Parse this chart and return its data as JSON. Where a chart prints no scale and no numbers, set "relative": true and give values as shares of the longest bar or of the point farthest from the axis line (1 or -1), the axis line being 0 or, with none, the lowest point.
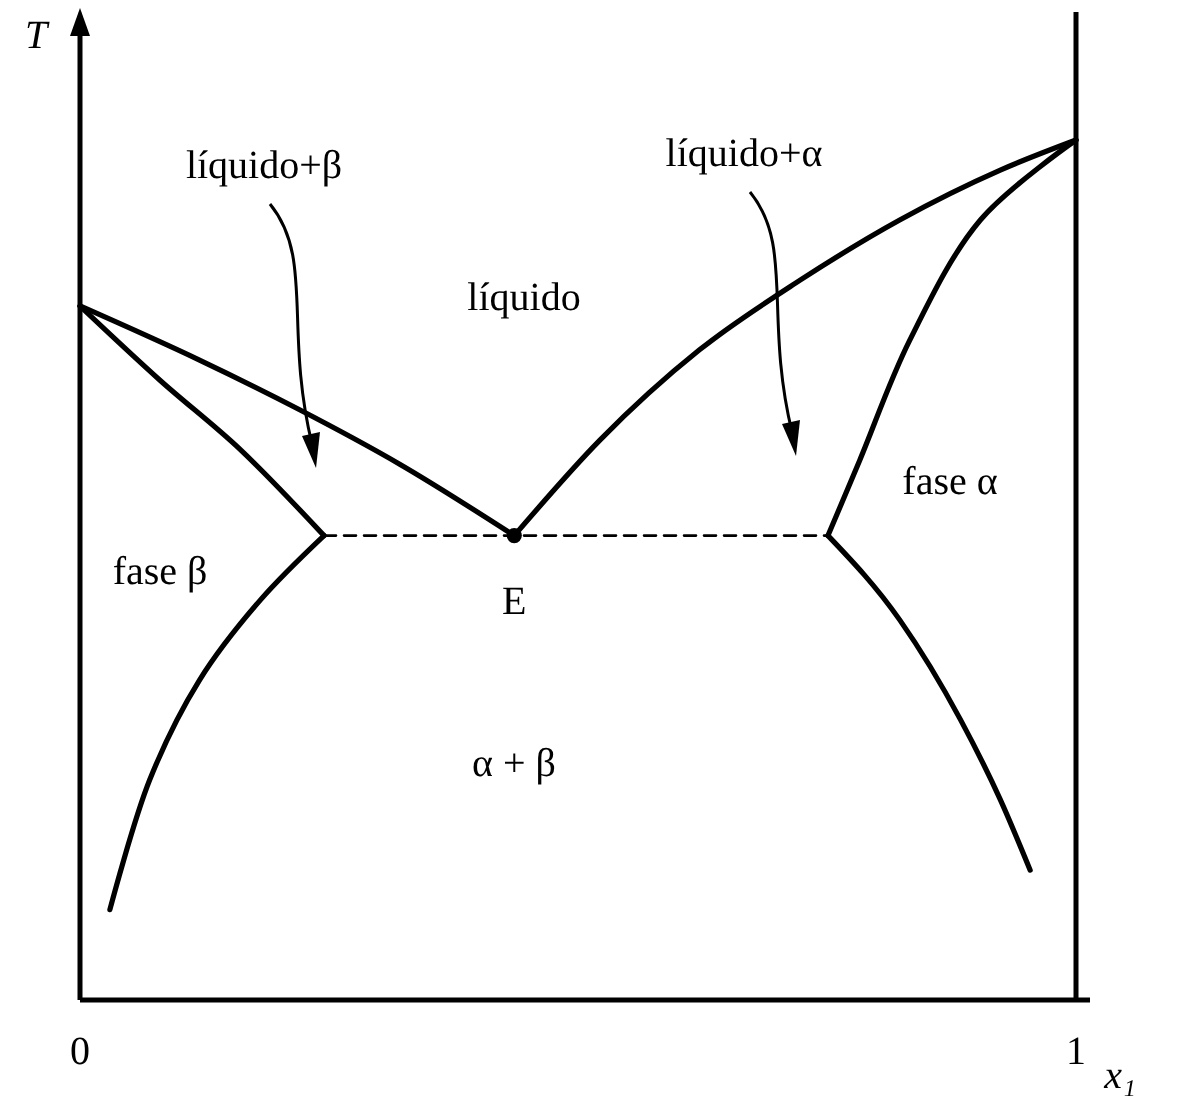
{
  "chart_data": {
    "type": "line",
    "relative": true,
    "xlabel": "x₁",
    "ylabel": "T",
    "xlim": [
      0,
      1
    ],
    "xticks": [
      0,
      1
    ],
    "tick_labels": "x",
    "marker": "none",
    "series": [
      {
        "color": "#000000",
        "x": [
          0,
          0.12,
          0.221,
          0.321,
          0.436
        ],
        "values": [
          0.807,
          0.744,
          0.686,
          0.623,
          0.54
        ]
      },
      {
        "color": "#000000",
        "x": [
          0.436,
          0.522,
          0.622,
          0.723,
          0.823,
          0.924,
          1
        ],
        "values": [
          0.54,
          0.651,
          0.756,
          0.837,
          0.907,
          0.965,
          1
        ]
      },
      {
        "color": "#000000",
        "x": [
          0,
          0.08,
          0.161,
          0.245
        ],
        "values": [
          0.807,
          0.721,
          0.64,
          0.54
        ]
      },
      {
        "color": "#000000",
        "x": [
          0.245,
          0.181,
          0.12,
          0.07,
          0.03
        ],
        "values": [
          0.54,
          0.465,
          0.372,
          0.256,
          0.105
        ]
      },
      {
        "color": "#000000",
        "x": [
          1,
          0.904,
          0.833,
          0.783,
          0.751
        ],
        "values": [
          1,
          0.907,
          0.767,
          0.628,
          0.54
        ]
      },
      {
        "color": "#000000",
        "x": [
          0.751,
          0.823,
          0.884,
          0.924,
          0.954
        ],
        "values": [
          0.54,
          0.442,
          0.326,
          0.233,
          0.151
        ]
      },
      {
        "color": "#000000",
        "x": [
          0.245,
          0.751
        ],
        "values": [
          0.54,
          0.54
        ],
        "line_style": "dashed"
      },
      {
        "type": "scatter",
        "color": "#000000",
        "marker": "circle",
        "x": [
          0.436
        ],
        "values": [
          0.54
        ]
      }
    ],
    "ref_lines": [
      {
        "axis": "x",
        "value": 1,
        "color": "#000000"
      }
    ],
    "annotations": [
      "líquido+β",
      "líquido+α",
      "líquido",
      "fase β",
      "fase α",
      "α + β",
      {
        "text": "E",
        "x": 0.436,
        "y": 0.54
      }
    ]
  }
}
